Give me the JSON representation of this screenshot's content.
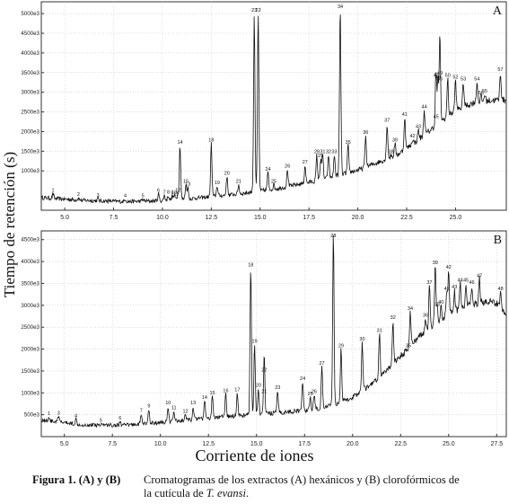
{
  "y_axis_label": "Tiempo de retención (s)",
  "x_axis_label": "Corriente de iones",
  "caption": {
    "label": "Figura 1. (A) y (B)",
    "text_line1": "Cromatogramas de los extractos (A) hexánicos y (B) clorofórmicos de",
    "text_line2": "la cutícula de ",
    "species": "T. evansi",
    "text_end": "."
  },
  "chart_data": [
    {
      "type": "line",
      "panel": "A",
      "xlim": [
        3.8,
        27.6
      ],
      "ylim": [
        0,
        5300000
      ],
      "x_ticks": [
        5.0,
        7.5,
        10.0,
        12.5,
        15.0,
        17.5,
        20.0,
        22.5,
        25.0
      ],
      "x_tick_labels": [
        "5.0",
        "7.5",
        "10.0",
        "12.5",
        "15.0",
        "17.5",
        "20.0",
        "22.5",
        "25.0"
      ],
      "y_ticks": [
        1000000,
        1500000,
        2000000,
        2500000,
        3000000,
        3500000,
        4000000,
        4500000,
        5000000
      ],
      "y_tick_labels": [
        "1000e3",
        "1500e3",
        "2000e3",
        "2500e3",
        "3000e3",
        "3500e3",
        "4000e3",
        "4500e3",
        "5000e3"
      ],
      "baseline": [
        [
          3.8,
          320000
        ],
        [
          6,
          250000
        ],
        [
          8,
          220000
        ],
        [
          10,
          240000
        ],
        [
          12,
          320000
        ],
        [
          14,
          420000
        ],
        [
          16,
          560000
        ],
        [
          18,
          760000
        ],
        [
          20,
          1020000
        ],
        [
          22,
          1400000
        ],
        [
          23,
          1750000
        ],
        [
          24,
          2150000
        ],
        [
          25,
          2550000
        ],
        [
          26,
          2750000
        ],
        [
          27,
          2800000
        ],
        [
          27.6,
          2800000
        ]
      ],
      "peaks": [
        {
          "label": "1",
          "x": 4.4,
          "y": 420000
        },
        {
          "label": "2",
          "x": 5.7,
          "y": 320000
        },
        {
          "label": "3",
          "x": 6.7,
          "y": 300000
        },
        {
          "label": "4",
          "x": 8.1,
          "y": 290000
        },
        {
          "label": "5",
          "x": 9.0,
          "y": 280000
        },
        {
          "label": "6",
          "x": 9.8,
          "y": 420000
        },
        {
          "label": "7",
          "x": 10.1,
          "y": 380000
        },
        {
          "label": "8",
          "x": 10.3,
          "y": 380000
        },
        {
          "label": "9",
          "x": 10.5,
          "y": 350000
        },
        {
          "label": "10",
          "x": 10.6,
          "y": 370000
        },
        {
          "label": "11",
          "x": 10.7,
          "y": 320000
        },
        {
          "label": "12",
          "x": 10.8,
          "y": 420000
        },
        {
          "label": "13",
          "x": 11.3,
          "y": 580000
        },
        {
          "label": "14",
          "x": 10.9,
          "y": 1650000
        },
        {
          "label": "15",
          "x": 11.2,
          "y": 650000
        },
        {
          "label": "18",
          "x": 12.5,
          "y": 1700000
        },
        {
          "label": "19",
          "x": 12.8,
          "y": 620000
        },
        {
          "label": "20",
          "x": 13.3,
          "y": 860000
        },
        {
          "label": "21",
          "x": 13.9,
          "y": 650000
        },
        {
          "label": "22",
          "x": 14.9,
          "y": 5000000
        },
        {
          "label": "23",
          "x": 14.7,
          "y": 5000000
        },
        {
          "label": "24",
          "x": 15.4,
          "y": 960000
        },
        {
          "label": "25",
          "x": 15.7,
          "y": 650000
        },
        {
          "label": "26",
          "x": 16.4,
          "y": 1040000
        },
        {
          "label": "27",
          "x": 17.3,
          "y": 1140000
        },
        {
          "label": "28",
          "x": 17.9,
          "y": 1400000
        },
        {
          "label": "29",
          "x": 18.1,
          "y": 1300000
        },
        {
          "label": "31",
          "x": 18.2,
          "y": 1400000
        },
        {
          "label": "32",
          "x": 18.5,
          "y": 1400000
        },
        {
          "label": "33",
          "x": 18.8,
          "y": 1400000
        },
        {
          "label": "34",
          "x": 19.1,
          "y": 5150000
        },
        {
          "label": "35",
          "x": 19.5,
          "y": 1650000
        },
        {
          "label": "36",
          "x": 20.4,
          "y": 1900000
        },
        {
          "label": "37",
          "x": 21.5,
          "y": 2200000
        },
        {
          "label": "38",
          "x": 21.7,
          "y": 1400000
        },
        {
          "label": "39",
          "x": 21.9,
          "y": 1700000
        },
        {
          "label": "41",
          "x": 22.4,
          "y": 2350000
        },
        {
          "label": "42",
          "x": 22.8,
          "y": 1800000
        },
        {
          "label": "43",
          "x": 23.1,
          "y": 2050000
        },
        {
          "label": "44",
          "x": 23.4,
          "y": 2550000
        },
        {
          "label": "45",
          "x": 24.0,
          "y": 2300000
        },
        {
          "label": "46",
          "x": 24.2,
          "y": 3250000
        },
        {
          "label": "47",
          "x": 24.0,
          "y": 3350000
        },
        {
          "label": "48",
          "x": 24.1,
          "y": 3300000
        },
        {
          "label": "49",
          "x": 24.2,
          "y": 3400000
        },
        {
          "label": "50",
          "x": 24.6,
          "y": 3350000
        },
        {
          "label": "52",
          "x": 25.0,
          "y": 3300000
        },
        {
          "label": "53",
          "x": 25.4,
          "y": 3250000
        },
        {
          "label": "54",
          "x": 26.1,
          "y": 3250000
        },
        {
          "label": "55",
          "x": 26.5,
          "y": 2950000
        },
        {
          "label": "56",
          "x": 26.3,
          "y": 2900000
        },
        {
          "label": "57",
          "x": 27.3,
          "y": 3500000
        }
      ]
    },
    {
      "type": "line",
      "panel": "B",
      "xlim": [
        3.8,
        28.0
      ],
      "ylim": [
        0,
        4700000
      ],
      "x_ticks": [
        5.0,
        7.5,
        10.0,
        12.5,
        15.0,
        17.5,
        20.0,
        22.5,
        25.0,
        27.5
      ],
      "x_tick_labels": [
        "5.0",
        "7.5",
        "10.0",
        "12.5",
        "15.0",
        "17.5",
        "20.0",
        "22.5",
        "25.0",
        "27.5"
      ],
      "y_ticks": [
        500000,
        1000000,
        1500000,
        2000000,
        2500000,
        3000000,
        3500000,
        4000000,
        4500000
      ],
      "y_tick_labels": [
        "500e3",
        "1000e3",
        "1500e3",
        "2000e3",
        "2500e3",
        "3000e3",
        "3500e3",
        "4000e3",
        "4500e3"
      ],
      "baseline": [
        [
          3.8,
          380000
        ],
        [
          6,
          270000
        ],
        [
          8,
          260000
        ],
        [
          10,
          320000
        ],
        [
          12,
          400000
        ],
        [
          14,
          480000
        ],
        [
          16,
          540000
        ],
        [
          18,
          620000
        ],
        [
          19,
          720000
        ],
        [
          20,
          900000
        ],
        [
          21,
          1200000
        ],
        [
          22,
          1600000
        ],
        [
          23,
          2100000
        ],
        [
          24,
          2500000
        ],
        [
          25,
          2800000
        ],
        [
          26,
          3000000
        ],
        [
          27,
          3100000
        ],
        [
          27.5,
          3050000
        ],
        [
          28.0,
          2800000
        ]
      ],
      "peaks": [
        {
          "label": "1",
          "x": 4.2,
          "y": 450000
        },
        {
          "label": "3",
          "x": 4.7,
          "y": 460000
        },
        {
          "label": "4",
          "x": 5.6,
          "y": 400000
        },
        {
          "label": "5",
          "x": 6.9,
          "y": 300000
        },
        {
          "label": "6",
          "x": 7.9,
          "y": 350000
        },
        {
          "label": "7",
          "x": 9.0,
          "y": 520000
        },
        {
          "label": "9",
          "x": 9.4,
          "y": 630000
        },
        {
          "label": "10",
          "x": 10.4,
          "y": 700000
        },
        {
          "label": "11",
          "x": 10.7,
          "y": 580000
        },
        {
          "label": "12",
          "x": 11.3,
          "y": 500000
        },
        {
          "label": "13",
          "x": 11.7,
          "y": 700000
        },
        {
          "label": "14",
          "x": 12.3,
          "y": 820000
        },
        {
          "label": "15",
          "x": 12.7,
          "y": 920000
        },
        {
          "label": "16",
          "x": 13.4,
          "y": 980000
        },
        {
          "label": "17",
          "x": 14.0,
          "y": 1000000
        },
        {
          "label": "18",
          "x": 14.7,
          "y": 3850000
        },
        {
          "label": "19",
          "x": 14.9,
          "y": 2100000
        },
        {
          "label": "20",
          "x": 15.1,
          "y": 1100000
        },
        {
          "label": "21",
          "x": 15.4,
          "y": 950000
        },
        {
          "label": "22",
          "x": 15.4,
          "y": 1450000
        },
        {
          "label": "23",
          "x": 16.1,
          "y": 1050000
        },
        {
          "label": "24",
          "x": 17.4,
          "y": 1250000
        },
        {
          "label": "25",
          "x": 17.8,
          "y": 900000
        },
        {
          "label": "26",
          "x": 18.0,
          "y": 950000
        },
        {
          "label": "27",
          "x": 18.4,
          "y": 1600000
        },
        {
          "label": "28",
          "x": 19.0,
          "y": 4700000
        },
        {
          "label": "29",
          "x": 19.4,
          "y": 2000000
        },
        {
          "label": "30",
          "x": 20.5,
          "y": 2150000
        },
        {
          "label": "31",
          "x": 21.4,
          "y": 2350000
        },
        {
          "label": "32",
          "x": 22.1,
          "y": 2650000
        },
        {
          "label": "33",
          "x": 22.6,
          "y": 1800000
        },
        {
          "label": "34",
          "x": 23.0,
          "y": 2850000
        },
        {
          "label": "35",
          "x": 22.9,
          "y": 2000000
        },
        {
          "label": "36",
          "x": 23.8,
          "y": 2700000
        },
        {
          "label": "37",
          "x": 24.0,
          "y": 3450000
        },
        {
          "label": "38",
          "x": 24.4,
          "y": 2950000
        },
        {
          "label": "39",
          "x": 24.3,
          "y": 3900000
        },
        {
          "label": "40",
          "x": 24.6,
          "y": 3000000
        },
        {
          "label": "41",
          "x": 24.9,
          "y": 3300000
        },
        {
          "label": "42",
          "x": 25.0,
          "y": 3800000
        },
        {
          "label": "43",
          "x": 25.3,
          "y": 3350000
        },
        {
          "label": "44",
          "x": 25.6,
          "y": 3500000
        },
        {
          "label": "45",
          "x": 25.9,
          "y": 3500000
        },
        {
          "label": "46",
          "x": 26.2,
          "y": 3450000
        },
        {
          "label": "47",
          "x": 26.6,
          "y": 3600000
        },
        {
          "label": "48",
          "x": 27.7,
          "y": 3300000
        }
      ]
    }
  ]
}
